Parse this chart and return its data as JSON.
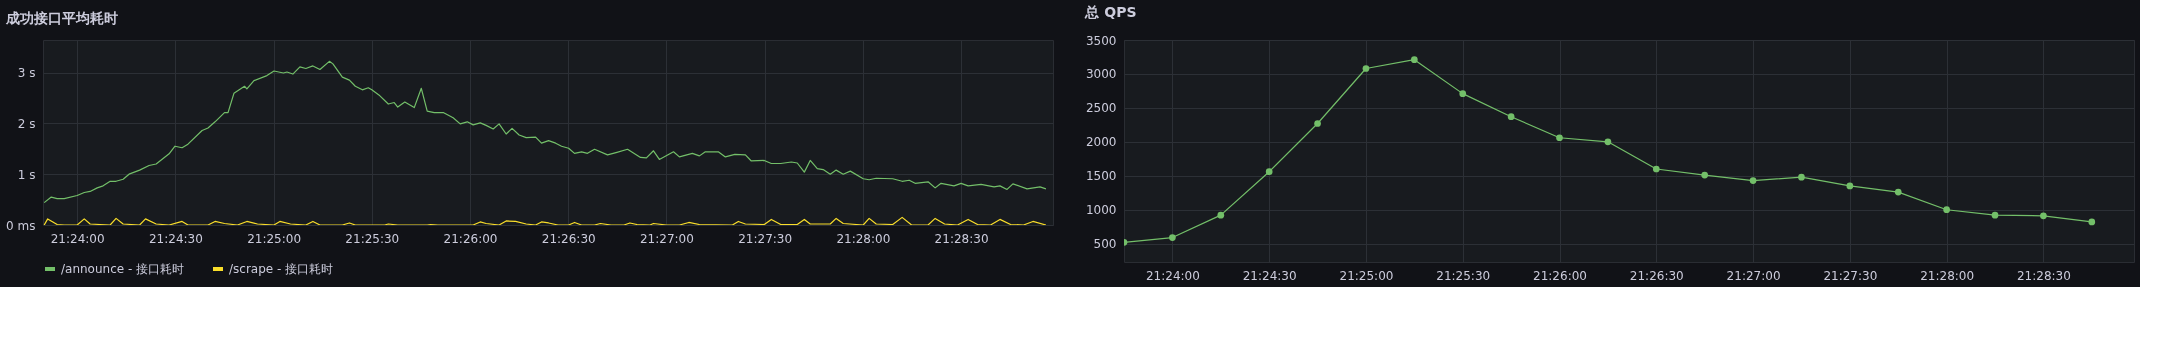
{
  "chart_data": [
    {
      "type": "line",
      "title": "成功接口平均耗时",
      "xlim": [
        21.3971,
        21.4828
      ],
      "xticks": [
        {
          "value": 21.4,
          "label": "21:24:00"
        },
        {
          "value": 21.408333,
          "label": "21:24:30"
        },
        {
          "value": 21.416667,
          "label": "21:25:00"
        },
        {
          "value": 21.425,
          "label": "21:25:30"
        },
        {
          "value": 21.433333,
          "label": "21:26:00"
        },
        {
          "value": 21.441667,
          "label": "21:26:30"
        },
        {
          "value": 21.45,
          "label": "21:27:00"
        },
        {
          "value": 21.458333,
          "label": "21:27:30"
        },
        {
          "value": 21.466667,
          "label": "21:28:00"
        },
        {
          "value": 21.475,
          "label": "21:28:30"
        }
      ],
      "ylim": [
        0,
        3.64
      ],
      "yticks": [
        {
          "value": 0,
          "label": "0 ms"
        },
        {
          "value": 1,
          "label": "1 s"
        },
        {
          "value": 2,
          "label": "2 s"
        },
        {
          "value": 3,
          "label": "3 s"
        }
      ],
      "grid": true,
      "legend": "bottom",
      "marker": "none",
      "line_style": "solid",
      "series": [
        {
          "name": "/announce - 接口耗时",
          "color": "#73bf69",
          "x": [
            21.3972,
            21.3978,
            21.3983,
            21.3989,
            21.4,
            21.4006,
            21.4011,
            21.4017,
            21.4022,
            21.4028,
            21.4033,
            21.4039,
            21.4044,
            21.4053,
            21.4061,
            21.4067,
            21.4078,
            21.4083,
            21.4089,
            21.4094,
            21.4106,
            21.4111,
            21.4117,
            21.4125,
            21.4128,
            21.4133,
            21.4142,
            21.4144,
            21.415,
            21.4161,
            21.4167,
            21.4175,
            21.4178,
            21.4183,
            21.4189,
            21.4194,
            21.42,
            21.4206,
            21.4214,
            21.4217,
            21.4225,
            21.4231,
            21.4236,
            21.4242,
            21.4247,
            21.425,
            21.4256,
            21.4264,
            21.4269,
            21.4272,
            21.4278,
            21.4286,
            21.4292,
            21.4297,
            21.4303,
            21.4311,
            21.4319,
            21.4325,
            21.4331,
            21.4336,
            21.4342,
            21.4347,
            21.4353,
            21.4358,
            21.4364,
            21.4369,
            21.4375,
            21.4381,
            21.4389,
            21.4394,
            21.44,
            21.4406,
            21.4411,
            21.4417,
            21.4422,
            21.4428,
            21.4433,
            21.4439,
            21.445,
            21.4458,
            21.4467,
            21.4478,
            21.4483,
            21.4489,
            21.4494,
            21.4506,
            21.4511,
            21.4522,
            21.4528,
            21.4533,
            21.4544,
            21.455,
            21.4558,
            21.4567,
            21.4572,
            21.4583,
            21.4589,
            21.4597,
            21.4606,
            21.4611,
            21.4617,
            21.4622,
            21.4628,
            21.4633,
            21.4639,
            21.4644,
            21.465,
            21.4656,
            21.4667,
            21.4672,
            21.4678,
            21.4692,
            21.47,
            21.4706,
            21.4711,
            21.4722,
            21.4728,
            21.4733,
            21.4744,
            21.475,
            21.4756,
            21.4767,
            21.4778,
            21.4783,
            21.4789,
            21.4794,
            21.4806,
            21.4817,
            21.4822
          ],
          "values": [
            0.44,
            0.55,
            0.52,
            0.52,
            0.58,
            0.64,
            0.66,
            0.73,
            0.77,
            0.86,
            0.86,
            0.9,
            1.0,
            1.08,
            1.17,
            1.2,
            1.4,
            1.55,
            1.52,
            1.59,
            1.86,
            1.91,
            2.03,
            2.21,
            2.21,
            2.59,
            2.73,
            2.68,
            2.84,
            2.94,
            3.03,
            2.99,
            3.01,
            2.97,
            3.11,
            3.08,
            3.13,
            3.06,
            3.22,
            3.17,
            2.91,
            2.85,
            2.73,
            2.66,
            2.7,
            2.66,
            2.56,
            2.38,
            2.41,
            2.32,
            2.42,
            2.31,
            2.69,
            2.24,
            2.21,
            2.21,
            2.11,
            1.99,
            2.03,
            1.97,
            2.01,
            1.96,
            1.89,
            1.99,
            1.79,
            1.9,
            1.77,
            1.72,
            1.73,
            1.61,
            1.66,
            1.61,
            1.55,
            1.51,
            1.41,
            1.44,
            1.41,
            1.49,
            1.38,
            1.43,
            1.49,
            1.33,
            1.32,
            1.46,
            1.29,
            1.44,
            1.34,
            1.41,
            1.36,
            1.44,
            1.44,
            1.34,
            1.39,
            1.38,
            1.26,
            1.27,
            1.21,
            1.21,
            1.24,
            1.22,
            1.04,
            1.27,
            1.11,
            1.09,
            1.0,
            1.08,
            1.0,
            1.06,
            0.91,
            0.89,
            0.92,
            0.91,
            0.86,
            0.88,
            0.82,
            0.85,
            0.73,
            0.82,
            0.77,
            0.82,
            0.77,
            0.8,
            0.75,
            0.77,
            0.7,
            0.81,
            0.71,
            0.75,
            0.71
          ]
        },
        {
          "name": "/scrape - 接口耗时",
          "color": "#fade2a",
          "x": [
            21.3972,
            21.3975,
            21.3983,
            21.3989,
            21.4,
            21.4006,
            21.4011,
            21.4028,
            21.4033,
            21.4039,
            21.4053,
            21.4058,
            21.4067,
            21.4078,
            21.4089,
            21.4094,
            21.4111,
            21.4117,
            21.4125,
            21.4136,
            21.4144,
            21.4153,
            21.4167,
            21.4172,
            21.4181,
            21.4194,
            21.42,
            21.4206,
            21.4225,
            21.4231,
            21.4236,
            21.4261,
            21.4264,
            21.4272,
            21.4297,
            21.43,
            21.4306,
            21.4336,
            21.4342,
            21.4347,
            21.4358,
            21.4364,
            21.4372,
            21.4381,
            21.4389,
            21.4394,
            21.44,
            21.4408,
            21.4417,
            21.4422,
            21.4428,
            21.4439,
            21.4444,
            21.4453,
            21.4464,
            21.4469,
            21.4475,
            21.4486,
            21.4489,
            21.45,
            21.4511,
            21.4519,
            21.4528,
            21.4556,
            21.4561,
            21.4567,
            21.4583,
            21.4589,
            21.4597,
            21.4611,
            21.4617,
            21.4622,
            21.4639,
            21.4644,
            21.465,
            21.4667,
            21.4672,
            21.4678,
            21.4692,
            21.47,
            21.4708,
            21.4722,
            21.4728,
            21.4736,
            21.4747,
            21.4756,
            21.4764,
            21.4775,
            21.4783,
            21.4792,
            21.4803,
            21.4811,
            21.4822
          ],
          "values": [
            0,
            0.12,
            0.01,
            0,
            0,
            0.12,
            0.02,
            0,
            0.13,
            0.02,
            0,
            0.12,
            0.02,
            0,
            0.07,
            0,
            0,
            0.07,
            0.03,
            0,
            0.07,
            0.02,
            0,
            0.07,
            0.02,
            0,
            0.07,
            0,
            0,
            0.04,
            0,
            0,
            0.02,
            0,
            0,
            0.01,
            0,
            0,
            0.06,
            0.03,
            0,
            0.08,
            0.07,
            0.02,
            0,
            0.06,
            0.04,
            0,
            0,
            0.05,
            0,
            0,
            0.03,
            0,
            0,
            0.04,
            0.01,
            0,
            0.03,
            0,
            0,
            0.05,
            0.01,
            0,
            0.07,
            0.02,
            0.01,
            0.11,
            0.01,
            0.01,
            0.11,
            0.02,
            0.02,
            0.13,
            0.03,
            0,
            0.13,
            0.02,
            0.01,
            0.15,
            0,
            0,
            0.13,
            0.02,
            0,
            0.11,
            0.01,
            0,
            0.11,
            0.01,
            0,
            0.07,
            0
          ]
        }
      ]
    },
    {
      "type": "line",
      "title": "总 QPS",
      "xlim": [
        21.395833,
        21.4828
      ],
      "xticks": [
        {
          "value": 21.4,
          "label": "21:24:00"
        },
        {
          "value": 21.408333,
          "label": "21:24:30"
        },
        {
          "value": 21.416667,
          "label": "21:25:00"
        },
        {
          "value": 21.425,
          "label": "21:25:30"
        },
        {
          "value": 21.433333,
          "label": "21:26:00"
        },
        {
          "value": 21.441667,
          "label": "21:26:30"
        },
        {
          "value": 21.45,
          "label": "21:27:00"
        },
        {
          "value": 21.458333,
          "label": "21:27:30"
        },
        {
          "value": 21.466667,
          "label": "21:28:00"
        },
        {
          "value": 21.475,
          "label": "21:28:30"
        }
      ],
      "ylim": [
        230,
        3500
      ],
      "yticks": [
        500,
        1000,
        1500,
        2000,
        2500,
        3000,
        3500
      ],
      "grid": true,
      "marker": "circle",
      "line_style": "solid",
      "x": [
        21.395833,
        21.4,
        21.404167,
        21.408333,
        21.4125,
        21.416667,
        21.420833,
        21.425,
        21.429167,
        21.433333,
        21.4375,
        21.441667,
        21.445833,
        21.45,
        21.454167,
        21.458333,
        21.4625,
        21.466667,
        21.470833,
        21.475,
        21.479167
      ],
      "series": [
        {
          "color": "#73bf69",
          "values": [
            520,
            590,
            920,
            1560,
            2270,
            3080,
            3210,
            2710,
            2370,
            2060,
            2000,
            1600,
            1510,
            1430,
            1480,
            1350,
            1260,
            1000,
            920,
            910,
            820
          ]
        }
      ]
    }
  ]
}
